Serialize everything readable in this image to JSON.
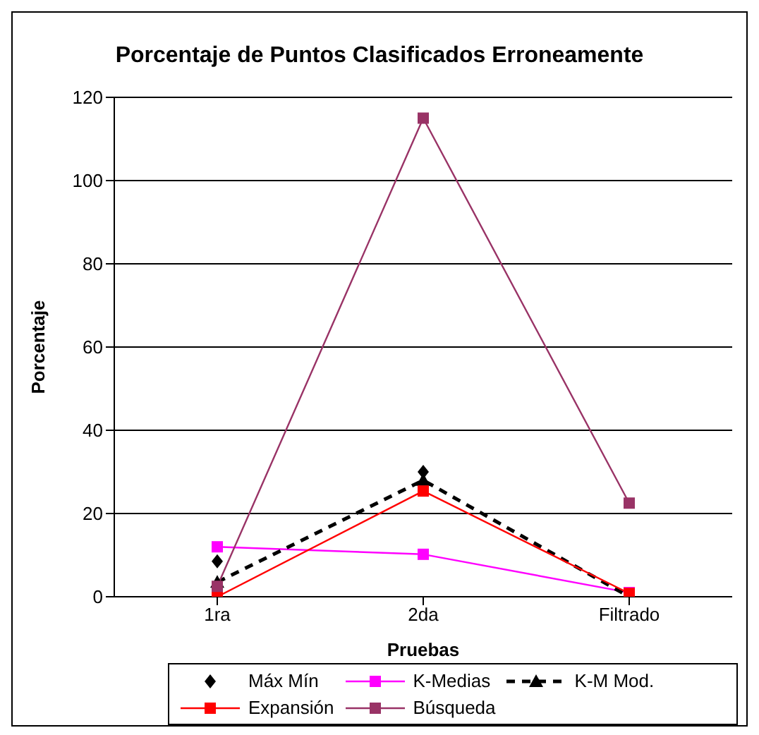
{
  "chart_data": {
    "type": "line",
    "title": "Porcentaje de Puntos Clasificados Erroneamente",
    "xlabel": "Pruebas",
    "ylabel": "Porcentaje",
    "categories": [
      "1ra",
      "2da",
      "Filtrado"
    ],
    "series": [
      {
        "name": "Máx Mín",
        "type": "scatter",
        "marker": "diamond",
        "color": "#000000",
        "values": [
          8.5,
          30,
          null
        ]
      },
      {
        "name": "K-Medias",
        "marker": "square",
        "line_style": "solid",
        "color": "#ff00ff",
        "values": [
          12,
          10.2,
          1
        ]
      },
      {
        "name": "K-M Mod.",
        "marker": "triangle",
        "line_style": "dashed",
        "color": "#000000",
        "values": [
          3.5,
          28,
          0
        ]
      },
      {
        "name": "Expansión",
        "marker": "square",
        "line_style": "solid",
        "color": "#ff0000",
        "values": [
          0,
          25.4,
          0.8
        ]
      },
      {
        "name": "Búsqueda",
        "marker": "square",
        "line_style": "solid",
        "color": "#993366",
        "values": [
          2.5,
          115,
          22.5
        ]
      }
    ],
    "ylim": [
      0,
      120
    ],
    "yticks": [
      0,
      20,
      40,
      60,
      80,
      100,
      120
    ],
    "grid": "y",
    "legend": "bottom"
  }
}
